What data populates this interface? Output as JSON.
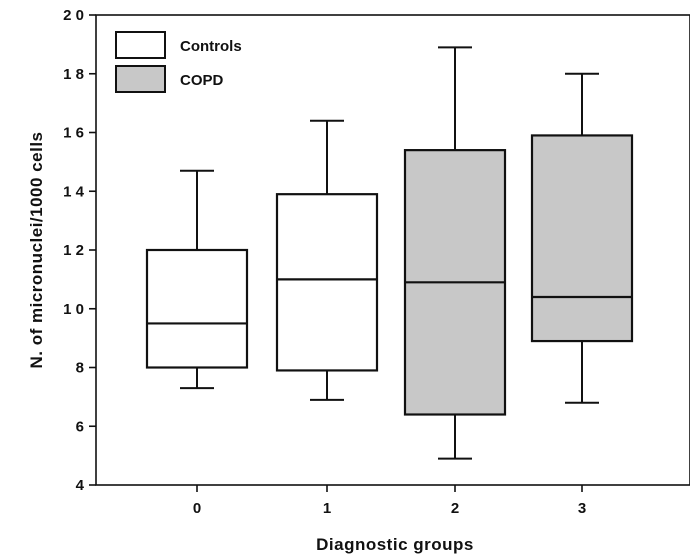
{
  "chart_data": {
    "type": "box",
    "xlabel": "Diagnostic  groups",
    "ylabel": "N.  of  micronuclei/1000  cells",
    "ylim": [
      4,
      20
    ],
    "yticks": [
      4,
      6,
      8,
      10,
      12,
      14,
      16,
      18,
      20
    ],
    "ytick_labels": [
      "4",
      "6",
      "8",
      "1 0",
      "1 2",
      "1 4",
      "1 6",
      "1 8",
      "2 0"
    ],
    "categories": [
      "0",
      "1",
      "2",
      "3"
    ],
    "legend": {
      "placement": "top-left",
      "items": [
        {
          "label": "Controls",
          "color": "#ffffff"
        },
        {
          "label": "COPD",
          "color": "#c8c8c8"
        }
      ]
    },
    "boxes": [
      {
        "category": "0",
        "group": "Controls",
        "min": 7.3,
        "q1": 8.0,
        "median": 9.5,
        "q3": 12.0,
        "max": 14.7
      },
      {
        "category": "1",
        "group": "Controls",
        "min": 6.9,
        "q1": 7.9,
        "median": 11.0,
        "q3": 13.9,
        "max": 16.4
      },
      {
        "category": "2",
        "group": "COPD",
        "min": 4.9,
        "q1": 6.4,
        "median": 10.9,
        "q3": 15.4,
        "max": 18.9
      },
      {
        "category": "3",
        "group": "COPD",
        "min": 6.8,
        "q1": 8.9,
        "median": 10.4,
        "q3": 15.9,
        "max": 18.0
      }
    ]
  }
}
